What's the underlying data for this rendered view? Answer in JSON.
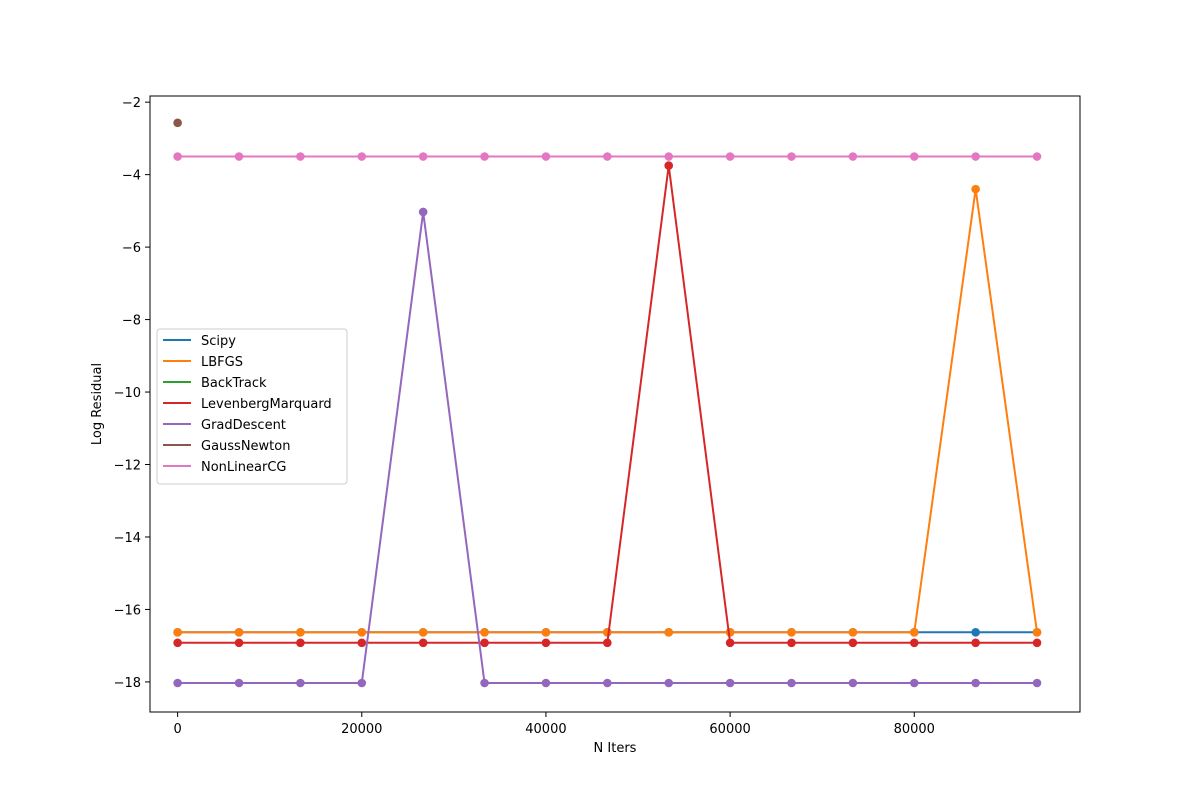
{
  "chart_data": {
    "type": "line",
    "xlabel": "N Iters",
    "ylabel": "Log Residual",
    "xlim": [
      -3000,
      98000
    ],
    "ylim": [
      -18.83,
      -1.83
    ],
    "x_ticks": [
      0,
      20000,
      40000,
      60000,
      80000
    ],
    "x_tick_labels": [
      "0",
      "20000",
      "40000",
      "60000",
      "80000"
    ],
    "y_ticks": [
      -2,
      -4,
      -6,
      -8,
      -10,
      -12,
      -14,
      -16,
      -18
    ],
    "y_tick_labels": [
      "−2",
      "−4",
      "−6",
      "−8",
      "−10",
      "−12",
      "−14",
      "−16",
      "−18"
    ],
    "grid": false,
    "legend_position": "center-left",
    "markers": true,
    "x": [
      0,
      6667,
      13333,
      20000,
      26667,
      33333,
      40000,
      46667,
      53333,
      60000,
      66667,
      73333,
      80000,
      86667,
      93333
    ],
    "series": [
      {
        "name": "Scipy",
        "color": "#1f77b4",
        "x": [
          0,
          6667,
          13333,
          20000,
          26667,
          33333,
          40000,
          46667,
          53333,
          60000,
          66667,
          73333,
          80000,
          86667,
          93333
        ],
        "values": [
          -16.63,
          -16.63,
          -16.63,
          -16.63,
          -16.63,
          -16.63,
          -16.63,
          -16.63,
          -16.63,
          -16.63,
          -16.63,
          -16.63,
          -16.63,
          -16.63,
          -16.63
        ]
      },
      {
        "name": "LBFGS",
        "color": "#ff7f0e",
        "x": [
          0,
          6667,
          13333,
          20000,
          26667,
          33333,
          40000,
          46667,
          53333,
          60000,
          66667,
          73333,
          80000,
          86667,
          93333
        ],
        "values": [
          -16.63,
          -16.63,
          -16.63,
          -16.63,
          -16.63,
          -16.63,
          -16.63,
          -16.63,
          -16.63,
          -16.63,
          -16.63,
          -16.63,
          -16.63,
          -4.4,
          -16.63
        ]
      },
      {
        "name": "BackTrack",
        "color": "#2ca02c",
        "x": [],
        "values": []
      },
      {
        "name": "LevenbergMarquard",
        "color": "#d62728",
        "x": [
          0,
          6667,
          13333,
          20000,
          26667,
          33333,
          40000,
          46667,
          53333,
          60000,
          66667,
          73333,
          80000,
          86667,
          93333
        ],
        "values": [
          -16.92,
          -16.92,
          -16.92,
          -16.92,
          -16.92,
          -16.92,
          -16.92,
          -16.92,
          -3.75,
          -16.92,
          -16.92,
          -16.92,
          -16.92,
          -16.92,
          -16.92
        ]
      },
      {
        "name": "GradDescent",
        "color": "#9467bd",
        "x": [
          0,
          6667,
          13333,
          20000,
          26667,
          33333,
          40000,
          46667,
          53333,
          60000,
          66667,
          73333,
          80000,
          86667,
          93333
        ],
        "values": [
          -18.03,
          -18.03,
          -18.03,
          -18.03,
          -5.03,
          -18.03,
          -18.03,
          -18.03,
          -18.03,
          -18.03,
          -18.03,
          -18.03,
          -18.03,
          -18.03,
          -18.03
        ]
      },
      {
        "name": "GaussNewton",
        "color": "#8c564b",
        "x": [
          0
        ],
        "values": [
          -2.57
        ]
      },
      {
        "name": "NonLinearCG",
        "color": "#e377c2",
        "x": [
          0,
          6667,
          13333,
          20000,
          26667,
          33333,
          40000,
          46667,
          53333,
          60000,
          66667,
          73333,
          80000,
          86667,
          93333
        ],
        "values": [
          -3.5,
          -3.5,
          -3.5,
          -3.5,
          -3.5,
          -3.5,
          -3.5,
          -3.5,
          -3.5,
          -3.5,
          -3.5,
          -3.5,
          -3.5,
          -3.5,
          -3.5
        ]
      }
    ]
  }
}
